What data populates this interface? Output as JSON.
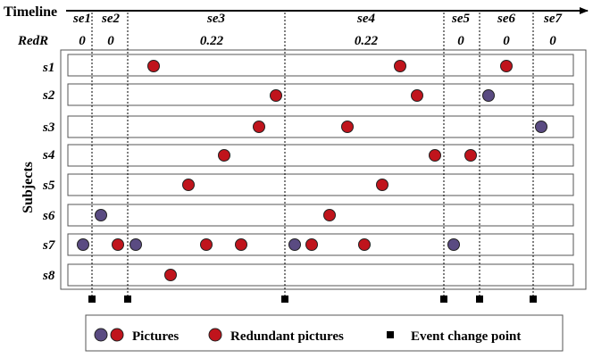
{
  "timeline_label": "Timeline",
  "redr_label": "RedR",
  "axis_label": "Subjects",
  "segments": [
    {
      "name": "se1",
      "redr": "0"
    },
    {
      "name": "se2",
      "redr": "0"
    },
    {
      "name": "se3",
      "redr": "0.22"
    },
    {
      "name": "se4",
      "redr": "0.22"
    },
    {
      "name": "se5",
      "redr": "0"
    },
    {
      "name": "se6",
      "redr": "0"
    },
    {
      "name": "se7",
      "redr": "0"
    }
  ],
  "subjects": [
    "s1",
    "s2",
    "s3",
    "s4",
    "s5",
    "s6",
    "s7",
    "s8"
  ],
  "colors": {
    "picture": "#5a4b82",
    "redundant": "#c0141c",
    "outline": "#222222"
  },
  "legend": {
    "pictures": "Pictures",
    "redundant": "Redundant pictures",
    "event": "Event change point"
  }
}
